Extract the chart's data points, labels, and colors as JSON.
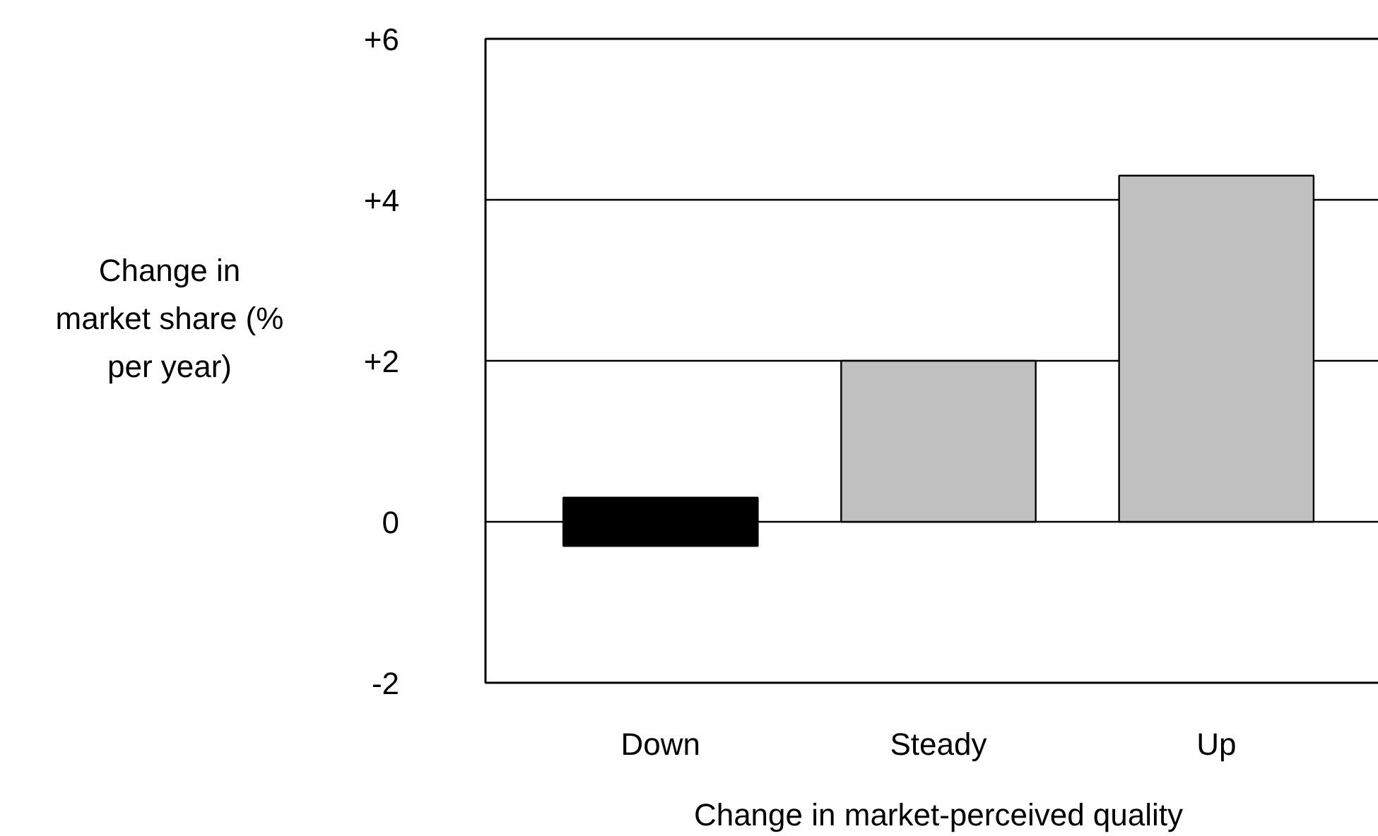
{
  "chart_data": {
    "type": "bar",
    "categories": [
      "Down",
      "Steady",
      "Up"
    ],
    "values": [
      0.6,
      2.0,
      4.3
    ],
    "base": [
      -0.3,
      0,
      0
    ],
    "colors": [
      "#000000",
      "#c0c0c0",
      "#c0c0c0"
    ],
    "xlabel": "Change in market-perceived quality",
    "ylabel": "Change in\nmarket share (%\nper year)",
    "ylim": [
      -2,
      6
    ],
    "yticks": [
      {
        "value": -2,
        "label": "-2"
      },
      0,
      {
        "value": 2,
        "label": "+2"
      },
      {
        "value": 4,
        "label": "+4"
      },
      {
        "value": 6,
        "label": "+6"
      }
    ],
    "grid": "y"
  }
}
